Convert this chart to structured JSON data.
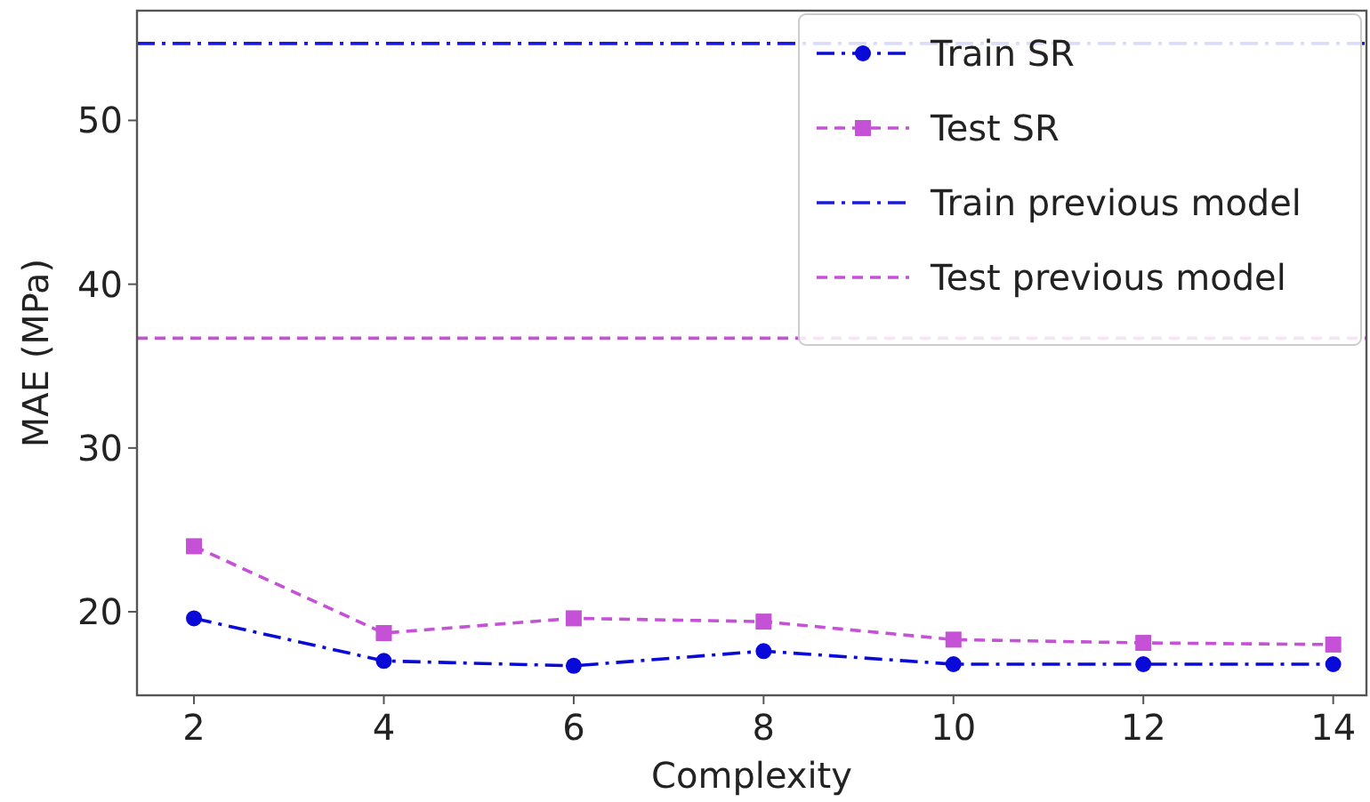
{
  "chart_data": {
    "type": "line",
    "xlabel": "Complexity",
    "ylabel": "MAE (MPa)",
    "x": [
      2,
      4,
      6,
      8,
      10,
      12,
      14
    ],
    "series": [
      {
        "name": "Train SR",
        "color": "#0a0ad8",
        "marker": "circle",
        "line_style": "dashdot",
        "values": [
          19.6,
          17.0,
          16.7,
          17.6,
          16.8,
          16.8,
          16.8
        ]
      },
      {
        "name": "Test SR",
        "color": "#c451d6",
        "marker": "square",
        "line_style": "dashed",
        "values": [
          24.0,
          18.7,
          19.6,
          19.4,
          18.3,
          18.1,
          18.0
        ]
      }
    ],
    "ref_lines": [
      {
        "axis": "y",
        "value": 54.7,
        "label": "Train previous model",
        "color": "#1a1ae0",
        "line_style": "dashdot"
      },
      {
        "axis": "y",
        "value": 36.7,
        "label": "Test previous model",
        "color": "#c451d6",
        "line_style": "dashed"
      }
    ],
    "xlim": [
      1.4,
      14.35
    ],
    "xticks": [
      2,
      4,
      6,
      8,
      10,
      12,
      14
    ],
    "ylim": [
      14.9,
      56.7
    ],
    "yticks": [
      20,
      30,
      40,
      50
    ],
    "grid": false,
    "legend": "top right"
  }
}
